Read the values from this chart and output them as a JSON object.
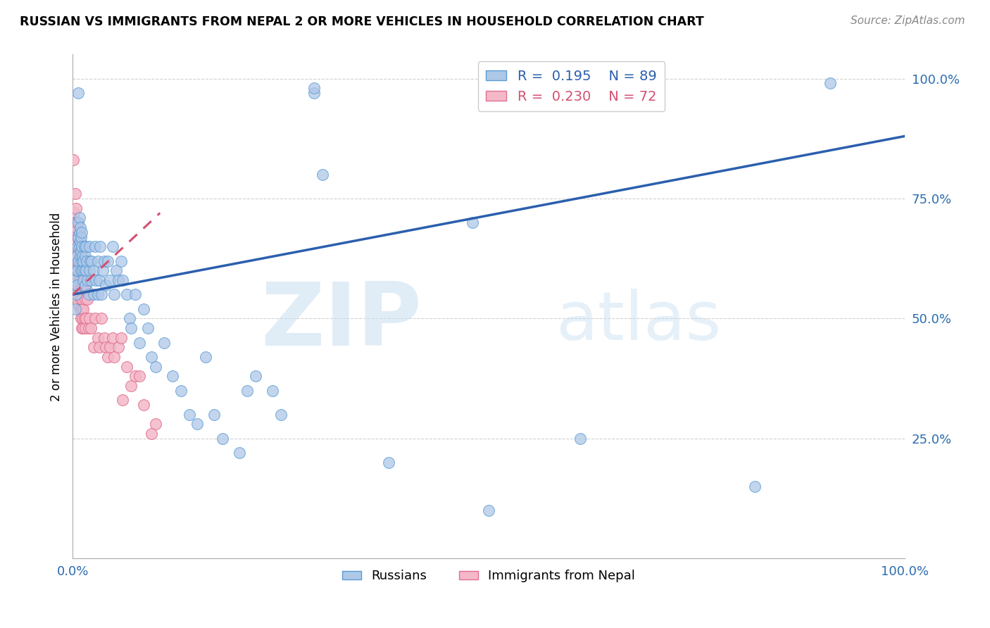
{
  "title": "RUSSIAN VS IMMIGRANTS FROM NEPAL 2 OR MORE VEHICLES IN HOUSEHOLD CORRELATION CHART",
  "source": "Source: ZipAtlas.com",
  "ylabel": "2 or more Vehicles in Household",
  "legend_label1": "Russians",
  "legend_label2": "Immigrants from Nepal",
  "R1": 0.195,
  "N1": 89,
  "R2": 0.23,
  "N2": 72,
  "watermark_zip": "ZIP",
  "watermark_atlas": "atlas",
  "blue_color": "#aec8e8",
  "blue_edge": "#5b9bd5",
  "pink_color": "#f4b8c8",
  "pink_edge": "#e07090",
  "trend_blue": "#2b5fad",
  "trend_pink": "#d45070",
  "blue_scatter": [
    [
      0.002,
      0.58
    ],
    [
      0.003,
      0.52
    ],
    [
      0.004,
      0.55
    ],
    [
      0.004,
      0.6
    ],
    [
      0.005,
      0.57
    ],
    [
      0.005,
      0.63
    ],
    [
      0.006,
      0.6
    ],
    [
      0.006,
      0.65
    ],
    [
      0.007,
      0.62
    ],
    [
      0.007,
      0.67
    ],
    [
      0.007,
      0.7
    ],
    [
      0.007,
      0.97
    ],
    [
      0.008,
      0.65
    ],
    [
      0.008,
      0.68
    ],
    [
      0.008,
      0.71
    ],
    [
      0.009,
      0.63
    ],
    [
      0.009,
      0.66
    ],
    [
      0.009,
      0.69
    ],
    [
      0.01,
      0.6
    ],
    [
      0.01,
      0.64
    ],
    [
      0.01,
      0.67
    ],
    [
      0.011,
      0.62
    ],
    [
      0.011,
      0.65
    ],
    [
      0.011,
      0.68
    ],
    [
      0.012,
      0.6
    ],
    [
      0.012,
      0.63
    ],
    [
      0.013,
      0.58
    ],
    [
      0.013,
      0.62
    ],
    [
      0.014,
      0.6
    ],
    [
      0.014,
      0.65
    ],
    [
      0.015,
      0.57
    ],
    [
      0.015,
      0.63
    ],
    [
      0.016,
      0.6
    ],
    [
      0.016,
      0.65
    ],
    [
      0.017,
      0.62
    ],
    [
      0.018,
      0.58
    ],
    [
      0.019,
      0.55
    ],
    [
      0.02,
      0.6
    ],
    [
      0.02,
      0.65
    ],
    [
      0.021,
      0.62
    ],
    [
      0.022,
      0.58
    ],
    [
      0.023,
      0.62
    ],
    [
      0.025,
      0.55
    ],
    [
      0.025,
      0.6
    ],
    [
      0.027,
      0.65
    ],
    [
      0.028,
      0.58
    ],
    [
      0.03,
      0.55
    ],
    [
      0.03,
      0.62
    ],
    [
      0.032,
      0.58
    ],
    [
      0.033,
      0.65
    ],
    [
      0.035,
      0.55
    ],
    [
      0.036,
      0.6
    ],
    [
      0.038,
      0.62
    ],
    [
      0.04,
      0.57
    ],
    [
      0.042,
      0.62
    ],
    [
      0.045,
      0.58
    ],
    [
      0.048,
      0.65
    ],
    [
      0.05,
      0.55
    ],
    [
      0.052,
      0.6
    ],
    [
      0.055,
      0.58
    ],
    [
      0.058,
      0.62
    ],
    [
      0.06,
      0.58
    ],
    [
      0.065,
      0.55
    ],
    [
      0.068,
      0.5
    ],
    [
      0.07,
      0.48
    ],
    [
      0.075,
      0.55
    ],
    [
      0.08,
      0.45
    ],
    [
      0.085,
      0.52
    ],
    [
      0.09,
      0.48
    ],
    [
      0.095,
      0.42
    ],
    [
      0.1,
      0.4
    ],
    [
      0.11,
      0.45
    ],
    [
      0.12,
      0.38
    ],
    [
      0.13,
      0.35
    ],
    [
      0.14,
      0.3
    ],
    [
      0.15,
      0.28
    ],
    [
      0.16,
      0.42
    ],
    [
      0.17,
      0.3
    ],
    [
      0.18,
      0.25
    ],
    [
      0.2,
      0.22
    ],
    [
      0.21,
      0.35
    ],
    [
      0.22,
      0.38
    ],
    [
      0.24,
      0.35
    ],
    [
      0.25,
      0.3
    ],
    [
      0.29,
      0.97
    ],
    [
      0.29,
      0.98
    ],
    [
      0.3,
      0.8
    ],
    [
      0.38,
      0.2
    ],
    [
      0.48,
      0.7
    ],
    [
      0.5,
      0.1
    ],
    [
      0.61,
      0.25
    ],
    [
      0.82,
      0.15
    ],
    [
      0.91,
      0.99
    ]
  ],
  "pink_scatter": [
    [
      0.001,
      0.83
    ],
    [
      0.002,
      0.72
    ],
    [
      0.002,
      0.68
    ],
    [
      0.003,
      0.76
    ],
    [
      0.003,
      0.7
    ],
    [
      0.003,
      0.66
    ],
    [
      0.004,
      0.73
    ],
    [
      0.004,
      0.69
    ],
    [
      0.004,
      0.65
    ],
    [
      0.005,
      0.7
    ],
    [
      0.005,
      0.66
    ],
    [
      0.005,
      0.62
    ],
    [
      0.006,
      0.67
    ],
    [
      0.006,
      0.63
    ],
    [
      0.006,
      0.59
    ],
    [
      0.006,
      0.55
    ],
    [
      0.007,
      0.65
    ],
    [
      0.007,
      0.61
    ],
    [
      0.007,
      0.57
    ],
    [
      0.007,
      0.53
    ],
    [
      0.008,
      0.62
    ],
    [
      0.008,
      0.58
    ],
    [
      0.008,
      0.55
    ],
    [
      0.009,
      0.6
    ],
    [
      0.009,
      0.56
    ],
    [
      0.009,
      0.52
    ],
    [
      0.01,
      0.58
    ],
    [
      0.01,
      0.54
    ],
    [
      0.01,
      0.5
    ],
    [
      0.011,
      0.56
    ],
    [
      0.011,
      0.52
    ],
    [
      0.011,
      0.48
    ],
    [
      0.012,
      0.54
    ],
    [
      0.012,
      0.5
    ],
    [
      0.013,
      0.52
    ],
    [
      0.013,
      0.48
    ],
    [
      0.014,
      0.58
    ],
    [
      0.014,
      0.5
    ],
    [
      0.015,
      0.54
    ],
    [
      0.015,
      0.48
    ],
    [
      0.016,
      0.6
    ],
    [
      0.016,
      0.5
    ],
    [
      0.017,
      0.56
    ],
    [
      0.018,
      0.54
    ],
    [
      0.019,
      0.48
    ],
    [
      0.02,
      0.5
    ],
    [
      0.022,
      0.48
    ],
    [
      0.025,
      0.44
    ],
    [
      0.027,
      0.5
    ],
    [
      0.03,
      0.46
    ],
    [
      0.032,
      0.44
    ],
    [
      0.035,
      0.5
    ],
    [
      0.038,
      0.46
    ],
    [
      0.04,
      0.44
    ],
    [
      0.042,
      0.42
    ],
    [
      0.045,
      0.44
    ],
    [
      0.048,
      0.46
    ],
    [
      0.05,
      0.42
    ],
    [
      0.055,
      0.44
    ],
    [
      0.058,
      0.46
    ],
    [
      0.06,
      0.33
    ],
    [
      0.065,
      0.4
    ],
    [
      0.07,
      0.36
    ],
    [
      0.075,
      0.38
    ],
    [
      0.08,
      0.38
    ],
    [
      0.085,
      0.32
    ],
    [
      0.095,
      0.26
    ],
    [
      0.1,
      0.28
    ]
  ],
  "blue_trend": [
    0.0,
    1.0,
    0.55,
    0.88
  ],
  "pink_trend": [
    0.0,
    0.105,
    0.55,
    0.72
  ],
  "xlim": [
    0.0,
    1.0
  ],
  "ylim": [
    0.0,
    1.05
  ]
}
